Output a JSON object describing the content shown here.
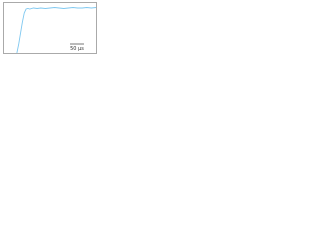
{
  "chart_data": {
    "type": "line",
    "x": [
      0,
      14,
      16,
      18,
      20,
      22,
      24,
      26,
      28,
      32,
      36,
      40,
      45,
      50,
      55,
      60,
      65,
      70,
      75,
      80,
      85,
      90,
      95,
      100
    ],
    "series": [
      {
        "color": "#7fc8f0",
        "values": [
          null,
          0,
          18,
          40,
          62,
          80,
          88,
          89,
          88,
          90,
          89,
          90,
          89,
          90,
          91,
          90,
          89,
          90,
          91,
          90,
          90,
          91,
          90,
          91
        ]
      }
    ],
    "xlim": [
      0,
      100
    ],
    "ylim": [
      0,
      100
    ],
    "scale_label": "50 μs"
  }
}
